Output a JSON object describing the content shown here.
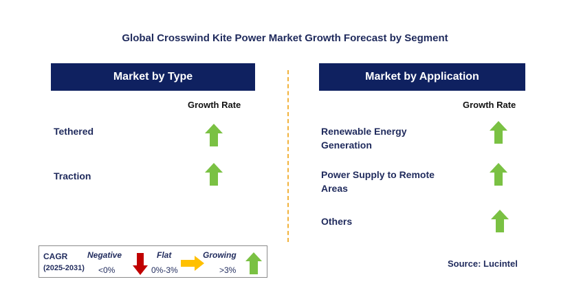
{
  "title": "Global Crosswind Kite Power Market Growth Forecast by Segment",
  "left_panel": {
    "header": "Market by Type",
    "growth_label": "Growth Rate",
    "rows": [
      {
        "label": "Tethered",
        "trend": "growing"
      },
      {
        "label": "Traction",
        "trend": "growing"
      }
    ]
  },
  "right_panel": {
    "header": "Market by Application",
    "growth_label": "Growth Rate",
    "rows": [
      {
        "label_line1": "Renewable Energy",
        "label_line2": "Generation",
        "trend": "growing"
      },
      {
        "label_line1": "Power Supply to Remote",
        "label_line2": "Areas",
        "trend": "growing"
      },
      {
        "label_line1": "Others",
        "label_line2": "",
        "trend": "growing"
      }
    ]
  },
  "legend": {
    "cagr_label": "CAGR",
    "period": "(2025-2031)",
    "negative": {
      "label": "Negative",
      "range": "<0%",
      "icon": "down-arrow-icon",
      "color": "#c00000"
    },
    "flat": {
      "label": "Flat",
      "range": "0%-3%",
      "icon": "right-arrow-icon",
      "color": "#ffc000"
    },
    "growing": {
      "label": "Growing",
      "range": ">3%",
      "icon": "up-arrow-icon",
      "color": "#7ac143"
    }
  },
  "source": "Source: Lucintel",
  "colors": {
    "header_bg": "#0f2160",
    "title_text": "#1f2a5c",
    "divider": "#f2b23a",
    "growing": "#7ac143"
  }
}
